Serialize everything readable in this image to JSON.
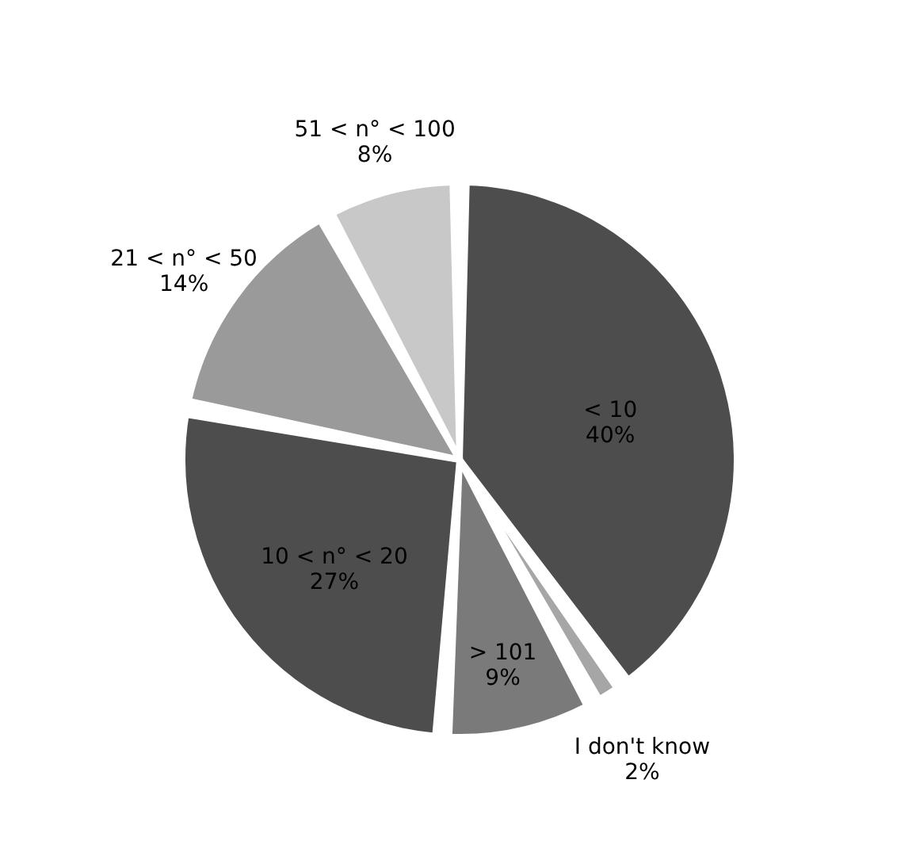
{
  "chart_data": {
    "type": "pie",
    "categories": [
      "< 10",
      "I don't know",
      "> 101",
      "10 < n° < 20",
      "21 < n° < 50",
      "51 < n° < 100"
    ],
    "values": [
      40,
      2,
      9,
      27,
      14,
      8
    ],
    "colors": [
      "#4d4d4d",
      "#a6a6a6",
      "#7a7a7a",
      "#4d4d4d",
      "#9a9a9a",
      "#c8c8c8"
    ],
    "value_labels": [
      "40%",
      "2%",
      "9%",
      "27%",
      "14%",
      "8%"
    ]
  }
}
